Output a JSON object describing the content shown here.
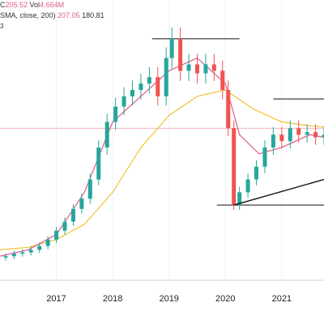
{
  "legend": {
    "row1_label": "C",
    "row1_close": "205.52",
    "row1_vol_label": "Vol",
    "row1_vol": "4.664M",
    "row2_label": "SMA, close, 200)",
    "row2_sma_fast": "207.05",
    "row2_sma_slow": "180.81",
    "row3_label": "3"
  },
  "colors": {
    "up": "#26a69a",
    "down": "#ef5350",
    "sma_fast": "#e05a8a",
    "sma_slow": "#f1c232",
    "trendline": "#111111",
    "price_line": "#f4b6b6"
  },
  "chart_data": {
    "type": "candlestick",
    "x_tick_labels": [
      "2017",
      "2018",
      "2019",
      "2020",
      "2021"
    ],
    "x_range": [
      2016.0,
      2021.75
    ],
    "y_range": [
      40,
      230
    ],
    "candles_monthly_close_approx": [
      [
        2016.1,
        55
      ],
      [
        2016.25,
        57
      ],
      [
        2016.4,
        58
      ],
      [
        2016.55,
        60
      ],
      [
        2016.7,
        63
      ],
      [
        2016.85,
        68
      ],
      [
        2017.0,
        75
      ],
      [
        2017.15,
        82
      ],
      [
        2017.3,
        92
      ],
      [
        2017.45,
        100
      ],
      [
        2017.6,
        115
      ],
      [
        2017.75,
        140
      ],
      [
        2017.9,
        160
      ],
      [
        2018.05,
        172
      ],
      [
        2018.2,
        180
      ],
      [
        2018.35,
        185
      ],
      [
        2018.5,
        190
      ],
      [
        2018.65,
        195
      ],
      [
        2018.8,
        180
      ],
      [
        2018.95,
        210
      ],
      [
        2019.05,
        225
      ],
      [
        2019.2,
        200
      ],
      [
        2019.35,
        205
      ],
      [
        2019.5,
        198
      ],
      [
        2019.65,
        205
      ],
      [
        2019.8,
        200
      ],
      [
        2019.95,
        185
      ],
      [
        2020.05,
        155
      ],
      [
        2020.15,
        95
      ],
      [
        2020.25,
        105
      ],
      [
        2020.4,
        115
      ],
      [
        2020.55,
        125
      ],
      [
        2020.7,
        140
      ],
      [
        2020.85,
        150
      ],
      [
        2021.0,
        145
      ],
      [
        2021.15,
        155
      ],
      [
        2021.3,
        150
      ],
      [
        2021.45,
        152
      ],
      [
        2021.6,
        148
      ],
      [
        2021.75,
        150
      ]
    ],
    "sma_fast_curve": [
      [
        2016.0,
        55
      ],
      [
        2016.5,
        60
      ],
      [
        2017.0,
        72
      ],
      [
        2017.5,
        105
      ],
      [
        2018.0,
        160
      ],
      [
        2018.5,
        180
      ],
      [
        2019.0,
        200
      ],
      [
        2019.5,
        210
      ],
      [
        2020.0,
        190
      ],
      [
        2020.25,
        150
      ],
      [
        2020.6,
        135
      ],
      [
        2021.0,
        140
      ],
      [
        2021.5,
        150
      ],
      [
        2021.75,
        148
      ]
    ],
    "sma_slow_curve": [
      [
        2016.0,
        60
      ],
      [
        2016.5,
        62
      ],
      [
        2017.0,
        68
      ],
      [
        2017.5,
        80
      ],
      [
        2018.0,
        105
      ],
      [
        2018.5,
        140
      ],
      [
        2019.0,
        165
      ],
      [
        2019.5,
        180
      ],
      [
        2020.0,
        185
      ],
      [
        2020.5,
        170
      ],
      [
        2021.0,
        160
      ],
      [
        2021.5,
        157
      ],
      [
        2021.75,
        156
      ]
    ],
    "horizontal_levels": [
      {
        "y": 225,
        "x_start": 2018.7,
        "x_end": 2020.25
      },
      {
        "y": 178,
        "x_start": 2020.85,
        "x_end": 2021.75
      },
      {
        "y": 95,
        "x_start": 2019.85,
        "x_end": 2021.75
      }
    ],
    "trendlines": [
      {
        "x1": 2020.15,
        "y1": 95,
        "x2": 2021.75,
        "y2": 115
      }
    ],
    "current_price_line_y": 155
  }
}
